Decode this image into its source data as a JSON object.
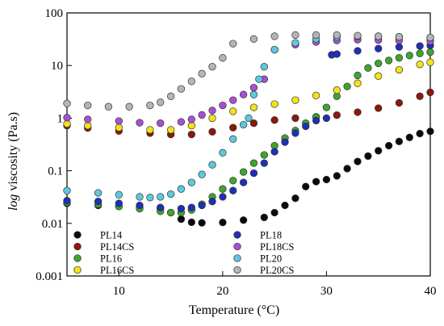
{
  "chart_data": {
    "type": "scatter",
    "xlabel": "Temperature (°C)",
    "ylabel_italic": "log",
    "ylabel_rest": " viscosity (Pa.s)",
    "xlim": [
      5,
      40
    ],
    "ylim": [
      0.001,
      100
    ],
    "yscale": "log",
    "grid": false,
    "legend_position": "bottom-center",
    "x_ticks": [
      {
        "value": 10,
        "label": "10"
      },
      {
        "value": 20,
        "label": "20"
      },
      {
        "value": 30,
        "label": "30"
      },
      {
        "value": 40,
        "label": "40"
      }
    ],
    "y_ticks": [
      {
        "value": 100,
        "label": "100"
      },
      {
        "value": 10,
        "label": "10"
      },
      {
        "value": 1,
        "label": "1"
      },
      {
        "value": 0.1,
        "label": "0.1"
      },
      {
        "value": 0.01,
        "label": "0.01"
      },
      {
        "value": 0.001,
        "label": "0.001"
      }
    ],
    "series": [
      {
        "name": "PL14",
        "color": "#0a0a0a",
        "points": [
          [
            5,
            0.024
          ],
          [
            8,
            0.022
          ],
          [
            10,
            0.021
          ],
          [
            12,
            0.02
          ],
          [
            14,
            0.019
          ],
          [
            15,
            0.016
          ],
          [
            16,
            0.012
          ],
          [
            17,
            0.0105
          ],
          [
            18,
            0.0102
          ],
          [
            20,
            0.0104
          ],
          [
            22,
            0.0115
          ],
          [
            24,
            0.013
          ],
          [
            25,
            0.016
          ],
          [
            26,
            0.022
          ],
          [
            27,
            0.03
          ],
          [
            28,
            0.05
          ],
          [
            29,
            0.062
          ],
          [
            30,
            0.068
          ],
          [
            31,
            0.08
          ],
          [
            32,
            0.11
          ],
          [
            33,
            0.15
          ],
          [
            34,
            0.19
          ],
          [
            35,
            0.24
          ],
          [
            36,
            0.3
          ],
          [
            37,
            0.36
          ],
          [
            38,
            0.43
          ],
          [
            39,
            0.51
          ],
          [
            40,
            0.56
          ]
        ]
      },
      {
        "name": "PL14CS",
        "color": "#8b1a0a",
        "points": [
          [
            5,
            0.72
          ],
          [
            7,
            0.65
          ],
          [
            10,
            0.57
          ],
          [
            13,
            0.52
          ],
          [
            15,
            0.49
          ],
          [
            17,
            0.49
          ],
          [
            19,
            0.55
          ],
          [
            21,
            0.66
          ],
          [
            23,
            0.8
          ],
          [
            25,
            0.92
          ],
          [
            27,
            1.0
          ],
          [
            29,
            1.06
          ],
          [
            31,
            1.14
          ],
          [
            33,
            1.3
          ],
          [
            35,
            1.55
          ],
          [
            37,
            1.95
          ],
          [
            39,
            2.6
          ],
          [
            40,
            3.1
          ]
        ]
      },
      {
        "name": "PL16",
        "color": "#3da62c",
        "points": [
          [
            5,
            0.025
          ],
          [
            8,
            0.023
          ],
          [
            10,
            0.021
          ],
          [
            12,
            0.019
          ],
          [
            14,
            0.017
          ],
          [
            15,
            0.016
          ],
          [
            16,
            0.016
          ],
          [
            17,
            0.018
          ],
          [
            18,
            0.023
          ],
          [
            19,
            0.032
          ],
          [
            20,
            0.045
          ],
          [
            21,
            0.065
          ],
          [
            22,
            0.095
          ],
          [
            23,
            0.14
          ],
          [
            24,
            0.2
          ],
          [
            25,
            0.3
          ],
          [
            26,
            0.42
          ],
          [
            27,
            0.58
          ],
          [
            28,
            0.8
          ],
          [
            29,
            1.05
          ],
          [
            30,
            1.6
          ],
          [
            31,
            2.6
          ],
          [
            32,
            4.0
          ],
          [
            33,
            6.5
          ],
          [
            34,
            9.0
          ],
          [
            35,
            11.0
          ],
          [
            36,
            12.5
          ],
          [
            37,
            14.0
          ],
          [
            38,
            15.5
          ],
          [
            39,
            17.0
          ],
          [
            40,
            18.0
          ]
        ]
      },
      {
        "name": "PL16CS",
        "color": "#f2e318",
        "points": [
          [
            5,
            0.78
          ],
          [
            7,
            0.72
          ],
          [
            10,
            0.66
          ],
          [
            13,
            0.6
          ],
          [
            15,
            0.6
          ],
          [
            17,
            0.72
          ],
          [
            19,
            1.0
          ],
          [
            21,
            1.35
          ],
          [
            23,
            1.6
          ],
          [
            25,
            1.85
          ],
          [
            27,
            2.2
          ],
          [
            29,
            2.7
          ],
          [
            31,
            3.4
          ],
          [
            33,
            4.6
          ],
          [
            35,
            6.3
          ],
          [
            37,
            8.3
          ],
          [
            39,
            10.5
          ],
          [
            40,
            11.5
          ]
        ]
      },
      {
        "name": "PL18",
        "color": "#1e2fb8",
        "points": [
          [
            5,
            0.027
          ],
          [
            8,
            0.026
          ],
          [
            10,
            0.024
          ],
          [
            12,
            0.022
          ],
          [
            14,
            0.02
          ],
          [
            16,
            0.019
          ],
          [
            17,
            0.02
          ],
          [
            18,
            0.022
          ],
          [
            19,
            0.026
          ],
          [
            20,
            0.032
          ],
          [
            21,
            0.042
          ],
          [
            22,
            0.06
          ],
          [
            23,
            0.09
          ],
          [
            24,
            0.14
          ],
          [
            25,
            0.23
          ],
          [
            26,
            0.35
          ],
          [
            27,
            0.52
          ],
          [
            28,
            0.7
          ],
          [
            29,
            0.9
          ],
          [
            30,
            1.0
          ],
          [
            30.5,
            16.0
          ],
          [
            31,
            16.5
          ],
          [
            33,
            19.0
          ],
          [
            35,
            21.0
          ],
          [
            37,
            22.5
          ],
          [
            39,
            23.5
          ],
          [
            40,
            24.0
          ]
        ]
      },
      {
        "name": "PL18CS",
        "color": "#a84fd6",
        "points": [
          [
            5,
            1.02
          ],
          [
            7,
            0.95
          ],
          [
            10,
            0.88
          ],
          [
            12,
            0.82
          ],
          [
            14,
            0.8
          ],
          [
            16,
            0.85
          ],
          [
            17,
            0.95
          ],
          [
            18,
            1.15
          ],
          [
            19,
            1.4
          ],
          [
            20,
            1.75
          ],
          [
            21,
            2.2
          ],
          [
            22,
            2.8
          ],
          [
            23,
            3.8
          ],
          [
            24,
            5.5
          ],
          [
            25,
            20.0
          ],
          [
            27,
            25.0
          ],
          [
            29,
            28.0
          ],
          [
            31,
            30.0
          ],
          [
            33,
            31.0
          ],
          [
            35,
            30.5
          ],
          [
            37,
            30.0
          ],
          [
            40,
            29.0
          ]
        ]
      },
      {
        "name": "PL20",
        "color": "#5ec8dd",
        "points": [
          [
            5,
            0.042
          ],
          [
            8,
            0.038
          ],
          [
            10,
            0.035
          ],
          [
            12,
            0.032
          ],
          [
            13,
            0.031
          ],
          [
            14,
            0.032
          ],
          [
            15,
            0.036
          ],
          [
            16,
            0.045
          ],
          [
            17,
            0.06
          ],
          [
            18,
            0.085
          ],
          [
            19,
            0.13
          ],
          [
            20,
            0.22
          ],
          [
            21,
            0.4
          ],
          [
            22,
            0.75
          ],
          [
            22.5,
            1.0
          ],
          [
            23,
            2.8
          ],
          [
            23.5,
            5.5
          ],
          [
            24,
            9.5
          ],
          [
            25,
            20.0
          ],
          [
            27,
            27.0
          ],
          [
            29,
            32.0
          ],
          [
            31,
            35.0
          ],
          [
            33,
            36.0
          ],
          [
            35,
            36.0
          ],
          [
            37,
            35.0
          ],
          [
            40,
            34.0
          ]
        ]
      },
      {
        "name": "PL20CS",
        "color": "#b5b5b5",
        "points": [
          [
            5,
            1.9
          ],
          [
            7,
            1.75
          ],
          [
            9,
            1.65
          ],
          [
            11,
            1.65
          ],
          [
            13,
            1.75
          ],
          [
            14,
            2.0
          ],
          [
            15,
            2.6
          ],
          [
            16,
            3.6
          ],
          [
            17,
            5.0
          ],
          [
            18,
            7.0
          ],
          [
            19,
            9.5
          ],
          [
            20,
            14.0
          ],
          [
            21,
            26.0
          ],
          [
            23,
            32.0
          ],
          [
            25,
            36.0
          ],
          [
            27,
            38.0
          ],
          [
            29,
            38.0
          ],
          [
            31,
            38.0
          ],
          [
            33,
            37.0
          ],
          [
            35,
            36.0
          ],
          [
            37,
            35.0
          ],
          [
            40,
            34.0
          ]
        ]
      }
    ]
  }
}
